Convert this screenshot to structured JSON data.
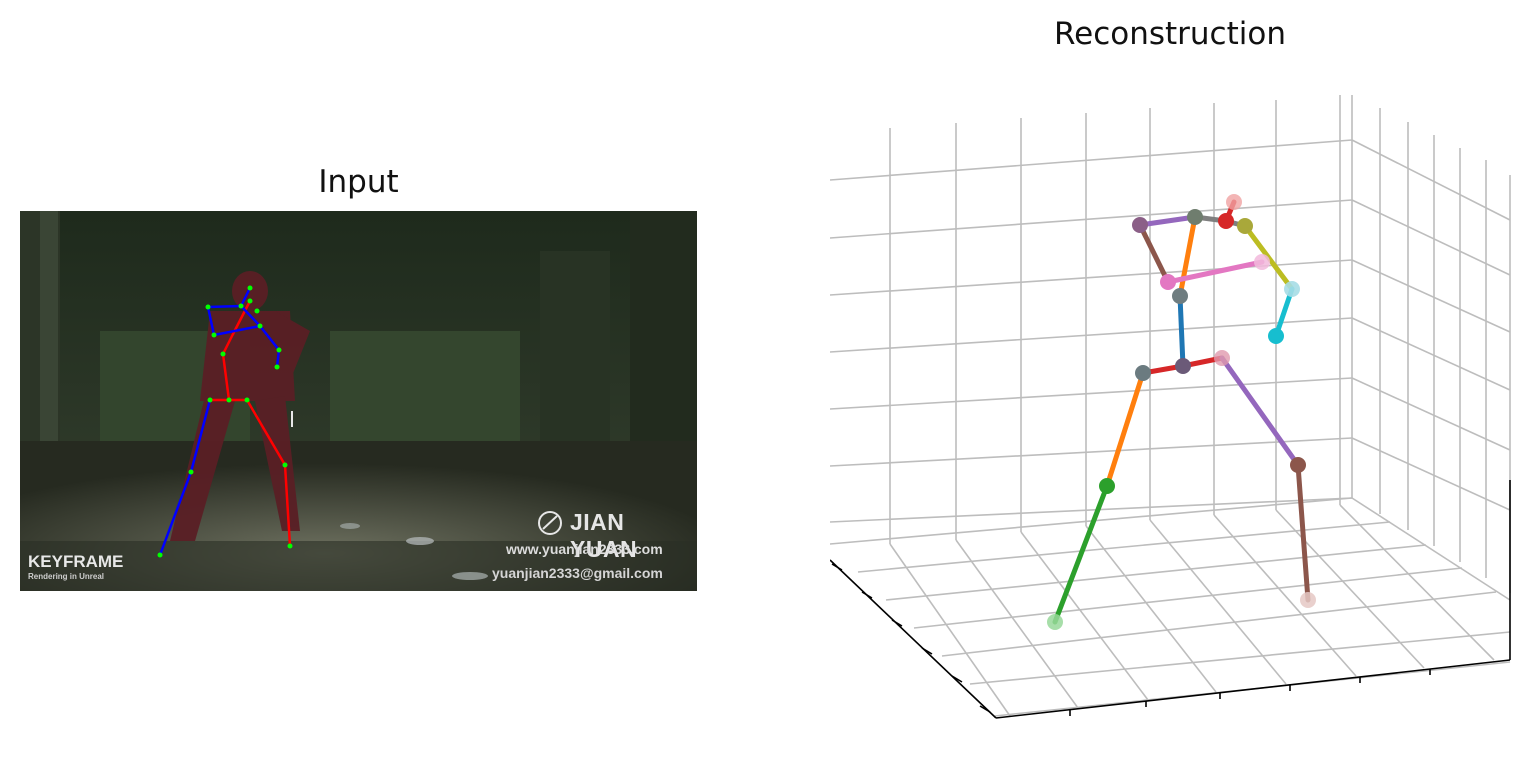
{
  "panels": {
    "input_title": "Input",
    "reconstruction_title": "Reconstruction"
  },
  "input_overlay": {
    "logo_title": "KEYFRAME",
    "logo_subtitle": "Rendering in Unreal",
    "watermark_brand": "JIAN YUAN",
    "watermark_url": "www.yuanjian2333.com",
    "watermark_email": "yuanjian2333@gmail.com"
  },
  "skeleton_colors": {
    "right_side": "#ff0000",
    "left_side": "#0000ff",
    "keypoint": "#00ff00"
  },
  "plot_colors": [
    "#1f77b4",
    "#ff7f0e",
    "#2ca02c",
    "#d62728",
    "#9467bd",
    "#8c564b",
    "#e377c2",
    "#7f7f7f",
    "#bcbd22",
    "#17becf"
  ]
}
